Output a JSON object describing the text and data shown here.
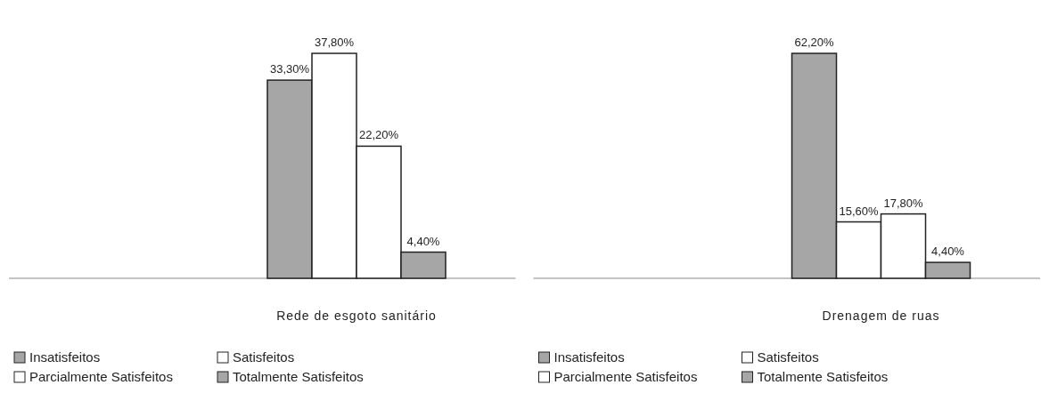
{
  "chart_data": [
    {
      "type": "bar",
      "title": "Rede de esgoto sanitário",
      "categories": [
        null
      ],
      "legend": "bottom",
      "series": [
        {
          "name": "Insatisfeitos",
          "color": "#a6a6a6",
          "values": [
            33.3
          ],
          "value_labels": [
            "33,30%"
          ]
        },
        {
          "name": "Satisfeitos",
          "color": "#ffffff",
          "values": [
            37.8
          ],
          "value_labels": [
            "37,80%"
          ]
        },
        {
          "name": "Parcialmente Satisfeitos",
          "color": "#ffffff",
          "values": [
            22.2
          ],
          "value_labels": [
            "22,20%"
          ]
        },
        {
          "name": "Totalmente Satisfeitos",
          "color": "#a6a6a6",
          "values": [
            4.4
          ],
          "value_labels": [
            "4,40%"
          ]
        }
      ]
    },
    {
      "type": "bar",
      "title": "Drenagem de ruas",
      "categories": [
        null
      ],
      "legend": "bottom",
      "series": [
        {
          "name": "Insatisfeitos",
          "color": "#a6a6a6",
          "values": [
            62.2
          ],
          "value_labels": [
            "62,20%"
          ]
        },
        {
          "name": "Satisfeitos",
          "color": "#ffffff",
          "values": [
            15.6
          ],
          "value_labels": [
            "15,60%"
          ]
        },
        {
          "name": "Parcialmente Satisfeitos",
          "color": "#ffffff",
          "values": [
            17.8
          ],
          "value_labels": [
            "17,80%"
          ]
        },
        {
          "name": "Totalmente Satisfeitos",
          "color": "#a6a6a6",
          "values": [
            4.4
          ],
          "value_labels": [
            "4,40%"
          ]
        }
      ]
    }
  ]
}
